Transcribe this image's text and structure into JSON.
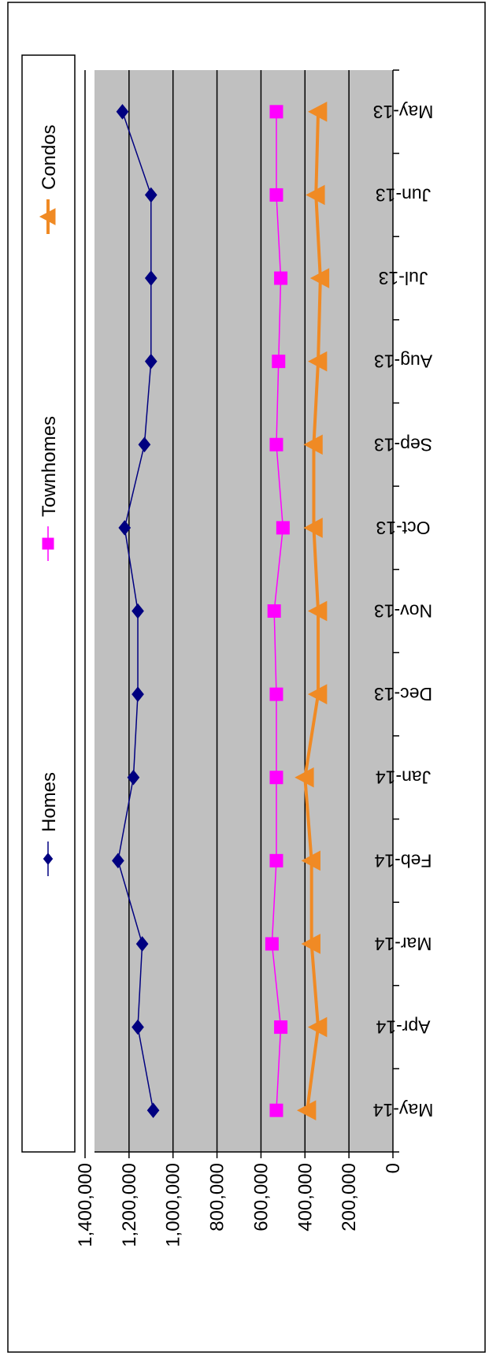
{
  "chart_data": {
    "type": "line",
    "orientation": "rotated 90 degrees clockwise",
    "categories": [
      "May-13",
      "Jun-13",
      "Jul-13",
      "Aug-13",
      "Sep-13",
      "Oct-13",
      "Nov-13",
      "Dec-13",
      "Jan-14",
      "Feb-14",
      "Mar-14",
      "Apr-14",
      "May-14"
    ],
    "y_ticks": [
      "0",
      "200,000",
      "400,000",
      "600,000",
      "800,000",
      "1,000,000",
      "1,200,000",
      "1,400,000"
    ],
    "ylim": [
      0,
      1400000
    ],
    "grid": true,
    "legend_position": "top",
    "series": [
      {
        "name": "Homes",
        "color": "#000080",
        "marker": "diamond",
        "values": [
          1230000,
          1100000,
          1100000,
          1100000,
          1130000,
          1220000,
          1160000,
          1160000,
          1180000,
          1250000,
          1140000,
          1160000,
          1090000
        ]
      },
      {
        "name": "Townhomes",
        "color": "#ff00ff",
        "marker": "square",
        "values": [
          530000,
          530000,
          510000,
          520000,
          530000,
          500000,
          540000,
          530000,
          530000,
          530000,
          550000,
          510000,
          530000
        ]
      },
      {
        "name": "Condos",
        "color": "#f08a24",
        "marker": "triangle",
        "values": [
          340000,
          350000,
          330000,
          340000,
          360000,
          360000,
          340000,
          340000,
          400000,
          370000,
          370000,
          340000,
          390000
        ]
      }
    ],
    "colors": {
      "plot_background": "#c0c0c0",
      "gridline": "#000000"
    }
  }
}
